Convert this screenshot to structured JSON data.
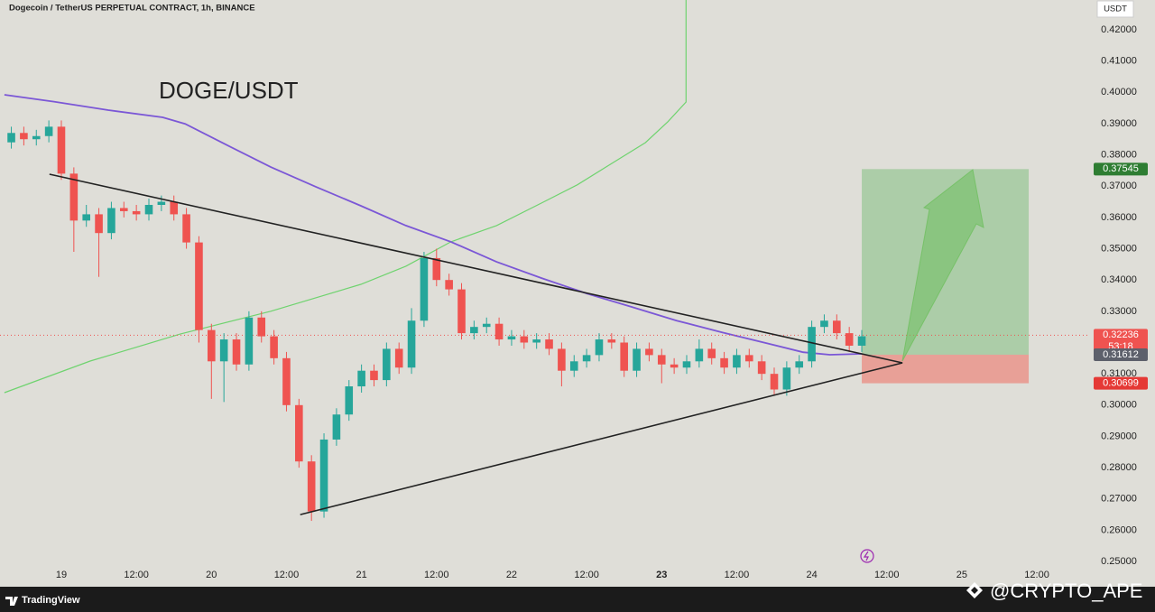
{
  "chart_data": {
    "type": "candlestick",
    "title": "Dogecoin / TetherUS PERPETUAL CONTRACT, 1h, BINANCE",
    "currency": "USDT",
    "annotation": "DOGE/USDT",
    "up_color": "#26a69a",
    "down_color": "#ef5350",
    "xlim": [
      -9.81,
      164.07
    ],
    "ylim": [
      0.2483,
      0.4295
    ],
    "grid": false,
    "xticks": [
      {
        "value": 0,
        "label": "19"
      },
      {
        "value": 12,
        "label": "12:00"
      },
      {
        "value": 24,
        "label": "20"
      },
      {
        "value": 36,
        "label": "12:00"
      },
      {
        "value": 48,
        "label": "21"
      },
      {
        "value": 60,
        "label": "12:00"
      },
      {
        "value": 72,
        "label": "22"
      },
      {
        "value": 84,
        "label": "12:00"
      },
      {
        "value": 96,
        "label": "23"
      },
      {
        "value": 108,
        "label": "12:00"
      },
      {
        "value": 120,
        "label": "24"
      },
      {
        "value": 132,
        "label": "12:00"
      },
      {
        "value": 144,
        "label": "25"
      },
      {
        "value": 156,
        "label": "12:00"
      }
    ],
    "yticks": [
      {
        "value": 0.42,
        "label": "0.42000"
      },
      {
        "value": 0.41,
        "label": "0.41000"
      },
      {
        "value": 0.4,
        "label": "0.40000"
      },
      {
        "value": 0.39,
        "label": "0.39000"
      },
      {
        "value": 0.38,
        "label": "0.38000"
      },
      {
        "value": 0.37,
        "label": "0.37000"
      },
      {
        "value": 0.36,
        "label": "0.36000"
      },
      {
        "value": 0.35,
        "label": "0.35000"
      },
      {
        "value": 0.34,
        "label": "0.34000"
      },
      {
        "value": 0.33,
        "label": "0.33000"
      },
      {
        "value": 0.32,
        "label": "0.32000"
      },
      {
        "value": 0.31,
        "label": "0.31000"
      },
      {
        "value": 0.3,
        "label": "0.30000"
      },
      {
        "value": 0.29,
        "label": "0.29000"
      },
      {
        "value": 0.28,
        "label": "0.28000"
      },
      {
        "value": 0.27,
        "label": "0.27000"
      },
      {
        "value": 0.26,
        "label": "0.26000"
      },
      {
        "value": 0.25,
        "label": "0.25000"
      }
    ],
    "candles": [
      {
        "x": -8,
        "o": 0.384,
        "h": 0.389,
        "l": 0.382,
        "c": 0.387
      },
      {
        "x": -6,
        "o": 0.387,
        "h": 0.389,
        "l": 0.383,
        "c": 0.385
      },
      {
        "x": -4,
        "o": 0.385,
        "h": 0.388,
        "l": 0.383,
        "c": 0.386
      },
      {
        "x": -2,
        "o": 0.386,
        "h": 0.391,
        "l": 0.384,
        "c": 0.389
      },
      {
        "x": 0,
        "o": 0.389,
        "h": 0.391,
        "l": 0.372,
        "c": 0.374
      },
      {
        "x": 2,
        "o": 0.374,
        "h": 0.376,
        "l": 0.349,
        "c": 0.359
      },
      {
        "x": 4,
        "o": 0.359,
        "h": 0.364,
        "l": 0.357,
        "c": 0.361
      },
      {
        "x": 6,
        "o": 0.361,
        "h": 0.363,
        "l": 0.341,
        "c": 0.355
      },
      {
        "x": 8,
        "o": 0.355,
        "h": 0.365,
        "l": 0.353,
        "c": 0.363
      },
      {
        "x": 10,
        "o": 0.363,
        "h": 0.365,
        "l": 0.36,
        "c": 0.362
      },
      {
        "x": 12,
        "o": 0.362,
        "h": 0.364,
        "l": 0.359,
        "c": 0.361
      },
      {
        "x": 14,
        "o": 0.361,
        "h": 0.366,
        "l": 0.359,
        "c": 0.364
      },
      {
        "x": 16,
        "o": 0.364,
        "h": 0.367,
        "l": 0.362,
        "c": 0.365
      },
      {
        "x": 18,
        "o": 0.365,
        "h": 0.367,
        "l": 0.359,
        "c": 0.361
      },
      {
        "x": 20,
        "o": 0.361,
        "h": 0.363,
        "l": 0.35,
        "c": 0.352
      },
      {
        "x": 22,
        "o": 0.352,
        "h": 0.354,
        "l": 0.32,
        "c": 0.324
      },
      {
        "x": 24,
        "o": 0.324,
        "h": 0.326,
        "l": 0.302,
        "c": 0.314
      },
      {
        "x": 26,
        "o": 0.314,
        "h": 0.323,
        "l": 0.301,
        "c": 0.321
      },
      {
        "x": 28,
        "o": 0.321,
        "h": 0.323,
        "l": 0.311,
        "c": 0.313
      },
      {
        "x": 30,
        "o": 0.313,
        "h": 0.33,
        "l": 0.311,
        "c": 0.328
      },
      {
        "x": 32,
        "o": 0.328,
        "h": 0.33,
        "l": 0.32,
        "c": 0.322
      },
      {
        "x": 34,
        "o": 0.322,
        "h": 0.324,
        "l": 0.313,
        "c": 0.315
      },
      {
        "x": 36,
        "o": 0.315,
        "h": 0.317,
        "l": 0.298,
        "c": 0.3
      },
      {
        "x": 38,
        "o": 0.3,
        "h": 0.302,
        "l": 0.28,
        "c": 0.282
      },
      {
        "x": 40,
        "o": 0.282,
        "h": 0.284,
        "l": 0.263,
        "c": 0.266
      },
      {
        "x": 42,
        "o": 0.266,
        "h": 0.291,
        "l": 0.264,
        "c": 0.289
      },
      {
        "x": 44,
        "o": 0.289,
        "h": 0.299,
        "l": 0.287,
        "c": 0.297
      },
      {
        "x": 46,
        "o": 0.297,
        "h": 0.308,
        "l": 0.295,
        "c": 0.306
      },
      {
        "x": 48,
        "o": 0.306,
        "h": 0.313,
        "l": 0.304,
        "c": 0.311
      },
      {
        "x": 50,
        "o": 0.311,
        "h": 0.313,
        "l": 0.306,
        "c": 0.308
      },
      {
        "x": 52,
        "o": 0.308,
        "h": 0.32,
        "l": 0.306,
        "c": 0.318
      },
      {
        "x": 54,
        "o": 0.318,
        "h": 0.32,
        "l": 0.31,
        "c": 0.312
      },
      {
        "x": 56,
        "o": 0.312,
        "h": 0.331,
        "l": 0.31,
        "c": 0.327
      },
      {
        "x": 58,
        "o": 0.327,
        "h": 0.349,
        "l": 0.325,
        "c": 0.347
      },
      {
        "x": 60,
        "o": 0.347,
        "h": 0.35,
        "l": 0.338,
        "c": 0.34
      },
      {
        "x": 62,
        "o": 0.34,
        "h": 0.342,
        "l": 0.335,
        "c": 0.337
      },
      {
        "x": 64,
        "o": 0.337,
        "h": 0.339,
        "l": 0.321,
        "c": 0.323
      },
      {
        "x": 66,
        "o": 0.323,
        "h": 0.327,
        "l": 0.321,
        "c": 0.325
      },
      {
        "x": 68,
        "o": 0.325,
        "h": 0.328,
        "l": 0.323,
        "c": 0.326
      },
      {
        "x": 70,
        "o": 0.326,
        "h": 0.328,
        "l": 0.319,
        "c": 0.321
      },
      {
        "x": 72,
        "o": 0.321,
        "h": 0.324,
        "l": 0.319,
        "c": 0.322
      },
      {
        "x": 74,
        "o": 0.322,
        "h": 0.324,
        "l": 0.318,
        "c": 0.32
      },
      {
        "x": 76,
        "o": 0.32,
        "h": 0.323,
        "l": 0.318,
        "c": 0.321
      },
      {
        "x": 78,
        "o": 0.321,
        "h": 0.323,
        "l": 0.316,
        "c": 0.318
      },
      {
        "x": 80,
        "o": 0.318,
        "h": 0.32,
        "l": 0.306,
        "c": 0.311
      },
      {
        "x": 82,
        "o": 0.311,
        "h": 0.316,
        "l": 0.309,
        "c": 0.314
      },
      {
        "x": 84,
        "o": 0.314,
        "h": 0.318,
        "l": 0.312,
        "c": 0.316
      },
      {
        "x": 86,
        "o": 0.316,
        "h": 0.323,
        "l": 0.314,
        "c": 0.321
      },
      {
        "x": 88,
        "o": 0.321,
        "h": 0.323,
        "l": 0.318,
        "c": 0.32
      },
      {
        "x": 90,
        "o": 0.32,
        "h": 0.322,
        "l": 0.309,
        "c": 0.311
      },
      {
        "x": 92,
        "o": 0.311,
        "h": 0.32,
        "l": 0.309,
        "c": 0.318
      },
      {
        "x": 94,
        "o": 0.318,
        "h": 0.32,
        "l": 0.314,
        "c": 0.316
      },
      {
        "x": 96,
        "o": 0.316,
        "h": 0.318,
        "l": 0.307,
        "c": 0.313
      },
      {
        "x": 98,
        "o": 0.313,
        "h": 0.315,
        "l": 0.31,
        "c": 0.312
      },
      {
        "x": 100,
        "o": 0.312,
        "h": 0.316,
        "l": 0.31,
        "c": 0.314
      },
      {
        "x": 102,
        "o": 0.314,
        "h": 0.321,
        "l": 0.312,
        "c": 0.318
      },
      {
        "x": 104,
        "o": 0.318,
        "h": 0.32,
        "l": 0.313,
        "c": 0.315
      },
      {
        "x": 106,
        "o": 0.315,
        "h": 0.317,
        "l": 0.31,
        "c": 0.312
      },
      {
        "x": 108,
        "o": 0.312,
        "h": 0.318,
        "l": 0.31,
        "c": 0.316
      },
      {
        "x": 110,
        "o": 0.316,
        "h": 0.318,
        "l": 0.312,
        "c": 0.314
      },
      {
        "x": 112,
        "o": 0.314,
        "h": 0.316,
        "l": 0.308,
        "c": 0.31
      },
      {
        "x": 114,
        "o": 0.31,
        "h": 0.312,
        "l": 0.303,
        "c": 0.305
      },
      {
        "x": 116,
        "o": 0.305,
        "h": 0.314,
        "l": 0.303,
        "c": 0.312
      },
      {
        "x": 118,
        "o": 0.312,
        "h": 0.316,
        "l": 0.31,
        "c": 0.314
      },
      {
        "x": 120,
        "o": 0.314,
        "h": 0.327,
        "l": 0.312,
        "c": 0.325
      },
      {
        "x": 122,
        "o": 0.325,
        "h": 0.329,
        "l": 0.323,
        "c": 0.327
      },
      {
        "x": 124,
        "o": 0.327,
        "h": 0.329,
        "l": 0.321,
        "c": 0.323
      },
      {
        "x": 126,
        "o": 0.323,
        "h": 0.325,
        "l": 0.317,
        "c": 0.319
      },
      {
        "x": 128,
        "o": 0.319,
        "h": 0.324,
        "l": 0.317,
        "c": 0.322
      }
    ],
    "moving_average": {
      "color": "#7b57d6",
      "x": [
        -9.1,
        -1.2,
        7.5,
        16.2,
        19.8,
        26.3,
        33.5,
        40.7,
        47.9,
        55.1,
        62.3,
        69.6,
        76.8,
        84.0,
        91.2,
        98.4,
        105.6,
        112.8,
        118.6,
        122.9,
        128.0
      ],
      "values": [
        0.3992,
        0.397,
        0.3943,
        0.392,
        0.3899,
        0.3833,
        0.3761,
        0.3698,
        0.3637,
        0.3574,
        0.3522,
        0.3458,
        0.3406,
        0.3357,
        0.3314,
        0.327,
        0.3233,
        0.3198,
        0.3169,
        0.3161,
        0.3164
      ]
    },
    "curve": {
      "color": "#6fd36f",
      "x": [
        -9.1,
        4.6,
        19.0,
        33.5,
        47.9,
        55.1,
        62.3,
        69.6,
        76.8,
        82.5,
        88.3,
        93.4,
        97.0,
        99.9,
        99.9
      ],
      "values": [
        0.304,
        0.3141,
        0.3227,
        0.33,
        0.3386,
        0.3444,
        0.3522,
        0.3574,
        0.3646,
        0.3704,
        0.3776,
        0.3839,
        0.3906,
        0.3969,
        0.4295
      ]
    },
    "trendlines": [
      {
        "color": "#222222",
        "x": [
          -1.9,
          134.5
        ],
        "values": [
          0.3738,
          0.3135
        ]
      },
      {
        "color": "#222222",
        "x": [
          38.2,
          134.5
        ],
        "values": [
          0.265,
          0.3135
        ]
      }
    ],
    "position": {
      "x": [
        128,
        154.7
      ],
      "target": 0.37545,
      "entry": 0.31612,
      "stop": 0.30699
    },
    "last_price": 0.32236,
    "countdown": "53:18",
    "footer": {
      "logo": "TradingView",
      "watermark": "@CRYPTO_APE"
    }
  }
}
